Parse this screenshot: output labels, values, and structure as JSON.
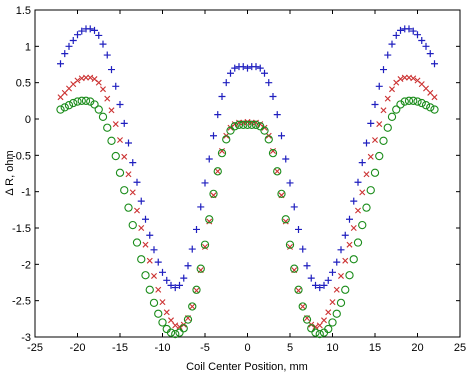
{
  "chart_data": {
    "type": "scatter",
    "title": "",
    "xlabel": "Coil Center Position, mm",
    "ylabel": "Δ R, ohm",
    "xlim": [
      -25,
      25
    ],
    "ylim": [
      -3,
      1.5
    ],
    "xticks": [
      -25,
      -20,
      -15,
      -10,
      -5,
      0,
      5,
      10,
      15,
      20,
      25
    ],
    "yticks": [
      -3,
      -2.5,
      -2,
      -1.5,
      -1,
      -0.5,
      0,
      0.5,
      1,
      1.5
    ],
    "xtick_labels": [
      "-25",
      "-20",
      "-15",
      "-10",
      "-5",
      "0",
      "5",
      "10",
      "15",
      "20",
      "25"
    ],
    "ytick_labels": [
      "-3",
      "-2.5",
      "-2",
      "-1.5",
      "-1",
      "-0.5",
      "0",
      "0.5",
      "1",
      "1.5"
    ],
    "grid": false,
    "x": [
      -22,
      -21.5,
      -21,
      -20.5,
      -20,
      -19.5,
      -19,
      -18.5,
      -18,
      -17.5,
      -17,
      -16.5,
      -16,
      -15.5,
      -15,
      -14.5,
      -14,
      -13.5,
      -13,
      -12.5,
      -12,
      -11.5,
      -11,
      -10.5,
      -10,
      -9.5,
      -9,
      -8.5,
      -8,
      -7.5,
      -7,
      -6.5,
      -6,
      -5.5,
      -5,
      -4.5,
      -4,
      -3.5,
      -3,
      -2.5,
      -2,
      -1.5,
      -1,
      -0.5,
      0,
      0.5,
      1,
      1.5,
      2,
      2.5,
      3,
      3.5,
      4,
      4.5,
      5,
      5.5,
      6,
      6.5,
      7,
      7.5,
      8,
      8.5,
      9,
      9.5,
      10,
      10.5,
      11,
      11.5,
      12,
      12.5,
      13,
      13.5,
      14,
      14.5,
      15,
      15.5,
      16,
      16.5,
      17,
      17.5,
      18,
      18.5,
      19,
      19.5,
      20,
      20.5,
      21,
      21.5,
      22
    ],
    "series": [
      {
        "marker": "plus",
        "color": "#1f1fbf",
        "values": [
          0.76,
          0.9,
          1.0,
          1.08,
          1.16,
          1.21,
          1.24,
          1.24,
          1.22,
          1.15,
          1.03,
          0.88,
          0.68,
          0.45,
          0.2,
          -0.06,
          -0.33,
          -0.6,
          -0.87,
          -1.13,
          -1.38,
          -1.6,
          -1.8,
          -1.97,
          -2.11,
          -2.22,
          -2.29,
          -2.32,
          -2.29,
          -2.19,
          -2.02,
          -1.79,
          -1.52,
          -1.21,
          -0.88,
          -0.55,
          -0.23,
          0.06,
          0.31,
          0.5,
          0.63,
          0.7,
          0.72,
          0.72,
          0.7,
          0.72,
          0.72,
          0.7,
          0.63,
          0.5,
          0.31,
          0.06,
          -0.23,
          -0.55,
          -0.88,
          -1.21,
          -1.52,
          -1.79,
          -2.02,
          -2.19,
          -2.29,
          -2.32,
          -2.29,
          -2.22,
          -2.11,
          -1.97,
          -1.8,
          -1.6,
          -1.38,
          -1.13,
          -0.87,
          -0.6,
          -0.33,
          -0.06,
          0.2,
          0.45,
          0.68,
          0.88,
          1.03,
          1.15,
          1.22,
          1.24,
          1.24,
          1.21,
          1.16,
          1.08,
          1.0,
          0.9,
          0.76
        ]
      },
      {
        "marker": "x",
        "color": "#cc3333",
        "values": [
          0.3,
          0.36,
          0.42,
          0.48,
          0.53,
          0.56,
          0.57,
          0.57,
          0.55,
          0.5,
          0.41,
          0.28,
          0.12,
          -0.07,
          -0.29,
          -0.52,
          -0.76,
          -1.01,
          -1.26,
          -1.5,
          -1.73,
          -1.95,
          -2.16,
          -2.35,
          -2.52,
          -2.66,
          -2.77,
          -2.84,
          -2.86,
          -2.83,
          -2.74,
          -2.58,
          -2.36,
          -2.08,
          -1.76,
          -1.41,
          -1.05,
          -0.72,
          -0.44,
          -0.23,
          -0.12,
          -0.07,
          -0.05,
          -0.05,
          -0.04,
          -0.05,
          -0.05,
          -0.07,
          -0.12,
          -0.23,
          -0.44,
          -0.72,
          -1.05,
          -1.41,
          -1.76,
          -2.08,
          -2.36,
          -2.58,
          -2.74,
          -2.83,
          -2.86,
          -2.84,
          -2.77,
          -2.66,
          -2.52,
          -2.35,
          -2.16,
          -1.95,
          -1.73,
          -1.5,
          -1.26,
          -1.01,
          -0.76,
          -0.52,
          -0.29,
          -0.07,
          0.12,
          0.28,
          0.41,
          0.5,
          0.55,
          0.57,
          0.57,
          0.56,
          0.53,
          0.48,
          0.42,
          0.36,
          0.3
        ]
      },
      {
        "marker": "circle",
        "color": "#1a8c1a",
        "values": [
          0.13,
          0.16,
          0.19,
          0.22,
          0.24,
          0.25,
          0.25,
          0.24,
          0.2,
          0.13,
          0.03,
          -0.12,
          -0.3,
          -0.51,
          -0.74,
          -0.98,
          -1.22,
          -1.46,
          -1.7,
          -1.93,
          -2.15,
          -2.35,
          -2.53,
          -2.68,
          -2.8,
          -2.89,
          -2.94,
          -2.96,
          -2.94,
          -2.88,
          -2.76,
          -2.58,
          -2.35,
          -2.06,
          -1.73,
          -1.38,
          -1.03,
          -0.72,
          -0.47,
          -0.28,
          -0.16,
          -0.1,
          -0.08,
          -0.08,
          -0.08,
          -0.08,
          -0.08,
          -0.1,
          -0.16,
          -0.28,
          -0.47,
          -0.72,
          -1.03,
          -1.38,
          -1.73,
          -2.06,
          -2.35,
          -2.58,
          -2.76,
          -2.88,
          -2.94,
          -2.96,
          -2.94,
          -2.89,
          -2.8,
          -2.68,
          -2.53,
          -2.35,
          -2.15,
          -1.93,
          -1.7,
          -1.46,
          -1.22,
          -0.98,
          -0.74,
          -0.51,
          -0.3,
          -0.12,
          0.03,
          0.13,
          0.2,
          0.24,
          0.25,
          0.25,
          0.24,
          0.22,
          0.19,
          0.16,
          0.13
        ]
      }
    ]
  }
}
